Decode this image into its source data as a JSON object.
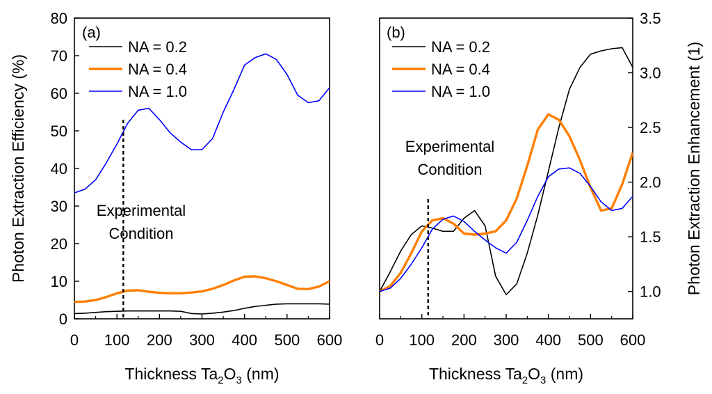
{
  "chart_data": [
    {
      "type": "line",
      "panel_label": "(a)",
      "xlabel": {
        "prefix": "Thickness Ta",
        "sub1": "2",
        "mid": "O",
        "sub2": "3",
        "suffix": " (nm)"
      },
      "ylabel": "Photon Extraction Efficiency (%)",
      "xlim": [
        0,
        600
      ],
      "ylim": [
        0,
        80
      ],
      "xticks": [
        0,
        100,
        200,
        300,
        400,
        500,
        600
      ],
      "yticks": [
        0,
        10,
        20,
        30,
        40,
        50,
        60,
        70,
        80
      ],
      "legend_position": "top-left",
      "annotation": {
        "lines": [
          "Experimental",
          "Condition"
        ],
        "x": 115
      },
      "series": [
        {
          "name": "NA = 0.2",
          "color": "#000000",
          "width": 1.6,
          "x": [
            0,
            25,
            50,
            75,
            100,
            125,
            150,
            175,
            200,
            225,
            250,
            275,
            300,
            325,
            350,
            375,
            400,
            425,
            450,
            475,
            500,
            525,
            550,
            575,
            600
          ],
          "y": [
            1.4,
            1.5,
            1.7,
            1.9,
            2.0,
            2.1,
            2.1,
            2.1,
            2.1,
            2.1,
            2.0,
            1.4,
            1.3,
            1.5,
            1.8,
            2.2,
            2.8,
            3.3,
            3.6,
            3.9,
            4.0,
            4.0,
            4.0,
            4.0,
            3.9
          ]
        },
        {
          "name": "NA = 0.4",
          "color": "#ff7f00",
          "width": 3.4,
          "x": [
            0,
            25,
            50,
            75,
            100,
            125,
            150,
            175,
            200,
            225,
            250,
            275,
            300,
            325,
            350,
            375,
            400,
            425,
            450,
            475,
            500,
            525,
            550,
            575,
            600
          ],
          "y": [
            4.5,
            4.6,
            5.0,
            5.8,
            6.8,
            7.5,
            7.6,
            7.2,
            6.9,
            6.8,
            6.8,
            7.0,
            7.3,
            8.0,
            9.0,
            10.2,
            11.2,
            11.3,
            10.8,
            10.0,
            9.0,
            8.0,
            7.9,
            8.6,
            10.0
          ]
        },
        {
          "name": "NA = 1.0",
          "color": "#0000ff",
          "width": 1.6,
          "x": [
            0,
            25,
            50,
            75,
            100,
            125,
            150,
            175,
            200,
            225,
            250,
            275,
            300,
            325,
            350,
            375,
            400,
            425,
            450,
            475,
            500,
            525,
            550,
            575,
            600
          ],
          "y": [
            33.5,
            34.5,
            37.0,
            41.5,
            46.5,
            52.0,
            55.5,
            56.0,
            53.0,
            49.5,
            47.0,
            45.0,
            45.0,
            48.0,
            55.0,
            61.0,
            67.5,
            69.5,
            70.5,
            69.0,
            65.0,
            59.5,
            57.5,
            58.0,
            61.5
          ]
        }
      ]
    },
    {
      "type": "line",
      "panel_label": "(b)",
      "xlabel": {
        "prefix": "Thickness Ta",
        "sub1": "2",
        "mid": "O",
        "sub2": "3",
        "suffix": " (nm)"
      },
      "ylabel": "Photon Extraction Enhancement (1)",
      "xlim": [
        0,
        600
      ],
      "ylim": [
        0.75,
        3.5
      ],
      "xticks": [
        0,
        100,
        200,
        300,
        400,
        500,
        600
      ],
      "yticks": [
        1.0,
        1.5,
        2.0,
        2.5,
        3.0,
        3.5
      ],
      "ytick_labels": [
        "1.0",
        "1.5",
        "2.0",
        "2.5",
        "3.0",
        "3.5"
      ],
      "legend_position": "top-left",
      "annotation": {
        "lines": [
          "Experimental",
          "Condition"
        ],
        "x": 115
      },
      "series": [
        {
          "name": "NA = 0.2",
          "color": "#000000",
          "width": 1.6,
          "x": [
            0,
            25,
            50,
            75,
            100,
            125,
            150,
            175,
            200,
            225,
            250,
            275,
            300,
            325,
            350,
            375,
            400,
            425,
            450,
            475,
            500,
            525,
            550,
            575,
            600
          ],
          "y": [
            1.0,
            1.18,
            1.37,
            1.52,
            1.6,
            1.58,
            1.55,
            1.55,
            1.67,
            1.74,
            1.6,
            1.14,
            0.97,
            1.07,
            1.35,
            1.7,
            2.1,
            2.5,
            2.85,
            3.05,
            3.17,
            3.2,
            3.22,
            3.23,
            3.05
          ]
        },
        {
          "name": "NA = 0.4",
          "color": "#ff7f00",
          "width": 3.4,
          "x": [
            0,
            25,
            50,
            75,
            100,
            125,
            150,
            175,
            200,
            225,
            250,
            275,
            300,
            325,
            350,
            375,
            400,
            425,
            450,
            475,
            500,
            525,
            550,
            575,
            600
          ],
          "y": [
            1.0,
            1.05,
            1.17,
            1.35,
            1.55,
            1.65,
            1.67,
            1.62,
            1.53,
            1.52,
            1.53,
            1.55,
            1.65,
            1.85,
            2.15,
            2.48,
            2.62,
            2.57,
            2.42,
            2.2,
            1.95,
            1.74,
            1.76,
            1.98,
            2.27
          ]
        },
        {
          "name": "NA = 1.0",
          "color": "#0000ff",
          "width": 1.6,
          "x": [
            0,
            25,
            50,
            75,
            100,
            125,
            150,
            175,
            200,
            225,
            250,
            275,
            300,
            325,
            350,
            375,
            400,
            425,
            450,
            475,
            500,
            525,
            550,
            575,
            600
          ],
          "y": [
            1.0,
            1.03,
            1.12,
            1.25,
            1.4,
            1.57,
            1.66,
            1.69,
            1.64,
            1.55,
            1.47,
            1.4,
            1.35,
            1.45,
            1.65,
            1.87,
            2.05,
            2.12,
            2.13,
            2.08,
            1.96,
            1.82,
            1.74,
            1.76,
            1.87
          ]
        }
      ]
    }
  ]
}
